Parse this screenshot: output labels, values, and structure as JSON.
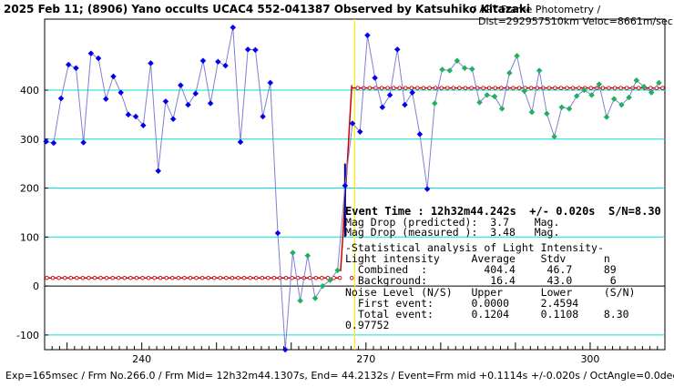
{
  "chart_data": {
    "type": "line",
    "title": "2025 Feb 11; (8906) Yano occults UCAC4 552-041387 Observed by Katsuhiko Kitazaki",
    "subtitle_line1": "/ APT-Frame Photometry /",
    "subtitle_line2": "Dist=292957510km Veloc=8661m/sec",
    "xlabel": "",
    "ylabel": "",
    "xlim": [
      227,
      310
    ],
    "ylim": [
      -130,
      545
    ],
    "x_ticks": [
      240,
      270,
      300
    ],
    "y_ticks": [
      -100,
      0,
      100,
      200,
      300,
      400
    ],
    "grid": "horizontal",
    "event_time_x": 268.5,
    "series": [
      {
        "name": "Light intensity",
        "line_color": "#8080d0",
        "points": [
          {
            "x": 227.2,
            "y": 295,
            "c": "blue"
          },
          {
            "x": 228.2,
            "y": 292,
            "c": "blue"
          },
          {
            "x": 229.2,
            "y": 383,
            "c": "blue"
          },
          {
            "x": 230.2,
            "y": 452,
            "c": "blue"
          },
          {
            "x": 231.2,
            "y": 445,
            "c": "blue"
          },
          {
            "x": 232.2,
            "y": 293,
            "c": "blue"
          },
          {
            "x": 233.2,
            "y": 475,
            "c": "blue"
          },
          {
            "x": 234.2,
            "y": 465,
            "c": "blue"
          },
          {
            "x": 235.2,
            "y": 382,
            "c": "blue"
          },
          {
            "x": 236.2,
            "y": 428,
            "c": "blue"
          },
          {
            "x": 237.2,
            "y": 395,
            "c": "blue"
          },
          {
            "x": 238.2,
            "y": 350,
            "c": "blue"
          },
          {
            "x": 239.2,
            "y": 346,
            "c": "blue"
          },
          {
            "x": 240.2,
            "y": 328,
            "c": "blue"
          },
          {
            "x": 241.2,
            "y": 455,
            "c": "blue"
          },
          {
            "x": 242.2,
            "y": 235,
            "c": "blue"
          },
          {
            "x": 243.2,
            "y": 377,
            "c": "blue"
          },
          {
            "x": 244.2,
            "y": 341,
            "c": "blue"
          },
          {
            "x": 245.2,
            "y": 410,
            "c": "blue"
          },
          {
            "x": 246.2,
            "y": 370,
            "c": "blue"
          },
          {
            "x": 247.2,
            "y": 393,
            "c": "blue"
          },
          {
            "x": 248.2,
            "y": 460,
            "c": "blue"
          },
          {
            "x": 249.2,
            "y": 373,
            "c": "blue"
          },
          {
            "x": 250.2,
            "y": 458,
            "c": "blue"
          },
          {
            "x": 251.2,
            "y": 450,
            "c": "blue"
          },
          {
            "x": 252.2,
            "y": 528,
            "c": "blue"
          },
          {
            "x": 253.2,
            "y": 294,
            "c": "blue"
          },
          {
            "x": 254.2,
            "y": 483,
            "c": "blue"
          },
          {
            "x": 255.2,
            "y": 482,
            "c": "blue"
          },
          {
            "x": 256.2,
            "y": 346,
            "c": "blue"
          },
          {
            "x": 257.2,
            "y": 415,
            "c": "blue"
          },
          {
            "x": 258.2,
            "y": 108,
            "c": "blue"
          },
          {
            "x": 259.2,
            "y": -130,
            "c": "blue"
          },
          {
            "x": 260.2,
            "y": 68,
            "c": "green"
          },
          {
            "x": 261.2,
            "y": -30,
            "c": "green"
          },
          {
            "x": 262.2,
            "y": 62,
            "c": "green"
          },
          {
            "x": 263.2,
            "y": -25,
            "c": "green"
          },
          {
            "x": 264.2,
            "y": 0,
            "c": "green"
          },
          {
            "x": 265.2,
            "y": 12,
            "c": "green"
          },
          {
            "x": 266.2,
            "y": 32,
            "c": "green"
          },
          {
            "x": 267.2,
            "y": 205,
            "c": "blue"
          },
          {
            "x": 268.2,
            "y": 332,
            "c": "blue"
          },
          {
            "x": 269.2,
            "y": 315,
            "c": "blue"
          },
          {
            "x": 270.2,
            "y": 512,
            "c": "blue"
          },
          {
            "x": 271.2,
            "y": 425,
            "c": "blue"
          },
          {
            "x": 272.2,
            "y": 365,
            "c": "blue"
          },
          {
            "x": 273.2,
            "y": 390,
            "c": "blue"
          },
          {
            "x": 274.2,
            "y": 483,
            "c": "blue"
          },
          {
            "x": 275.2,
            "y": 370,
            "c": "blue"
          },
          {
            "x": 276.2,
            "y": 395,
            "c": "blue"
          },
          {
            "x": 277.2,
            "y": 310,
            "c": "blue"
          },
          {
            "x": 278.2,
            "y": 198,
            "c": "blue"
          },
          {
            "x": 279.2,
            "y": 373,
            "c": "green"
          },
          {
            "x": 280.2,
            "y": 442,
            "c": "green"
          },
          {
            "x": 281.2,
            "y": 440,
            "c": "green"
          },
          {
            "x": 282.2,
            "y": 460,
            "c": "green"
          },
          {
            "x": 283.2,
            "y": 445,
            "c": "green"
          },
          {
            "x": 284.2,
            "y": 443,
            "c": "green"
          },
          {
            "x": 285.2,
            "y": 375,
            "c": "green"
          },
          {
            "x": 286.2,
            "y": 390,
            "c": "green"
          },
          {
            "x": 287.2,
            "y": 387,
            "c": "green"
          },
          {
            "x": 288.2,
            "y": 362,
            "c": "green"
          },
          {
            "x": 289.2,
            "y": 435,
            "c": "green"
          },
          {
            "x": 290.2,
            "y": 470,
            "c": "green"
          },
          {
            "x": 291.2,
            "y": 398,
            "c": "green"
          },
          {
            "x": 292.2,
            "y": 355,
            "c": "green"
          },
          {
            "x": 293.2,
            "y": 440,
            "c": "green"
          },
          {
            "x": 294.2,
            "y": 352,
            "c": "green"
          },
          {
            "x": 295.2,
            "y": 305,
            "c": "green"
          },
          {
            "x": 296.2,
            "y": 365,
            "c": "green"
          },
          {
            "x": 297.2,
            "y": 362,
            "c": "green"
          },
          {
            "x": 298.2,
            "y": 388,
            "c": "green"
          },
          {
            "x": 299.2,
            "y": 400,
            "c": "green"
          },
          {
            "x": 300.2,
            "y": 390,
            "c": "green"
          },
          {
            "x": 301.2,
            "y": 412,
            "c": "green"
          },
          {
            "x": 302.2,
            "y": 345,
            "c": "green"
          },
          {
            "x": 303.2,
            "y": 382,
            "c": "green"
          },
          {
            "x": 304.2,
            "y": 370,
            "c": "green"
          },
          {
            "x": 305.2,
            "y": 385,
            "c": "green"
          },
          {
            "x": 306.2,
            "y": 420,
            "c": "green"
          },
          {
            "x": 307.2,
            "y": 407,
            "c": "green"
          },
          {
            "x": 308.2,
            "y": 395,
            "c": "green"
          },
          {
            "x": 309.2,
            "y": 415,
            "c": "green"
          }
        ]
      },
      {
        "name": "Fitted model",
        "line_color": "#cc0000",
        "low_level": 16.4,
        "high_level": 404.4,
        "x_start": 227,
        "x_end": 310,
        "event_x": 268.5,
        "step_x": [
          266.6,
          266.9,
          267.2,
          267.5,
          267.8,
          268.1
        ],
        "step_y": [
          30,
          100,
          180,
          250,
          330,
          410
        ]
      }
    ],
    "colors": {
      "blue": "#0000ee",
      "green": "#20b060",
      "grid": "#00e0e0",
      "event_line": "#ffee00",
      "data_line": "#8080d0",
      "model": "#cc0000",
      "step": "#000080"
    }
  },
  "annotations": {
    "event_time": "Event Time : 12h32m44.242s  +/- 0.020s  S/N=8.30",
    "mag_pred": "Mag Drop (predicted):  3.7    Mag.",
    "mag_meas": "Mag Drop (measured ):  3.48   Mag.",
    "stat_head": "-Statistical analysis of Light Intensity-",
    "stat_cols": "Light intensity     Average    Stdv      n",
    "stat_comb": "  Combined  :         404.4     46.7     89",
    "stat_back": "  Background:          16.4     43.0      6",
    "noise_head": "Noise Level (N/S)   Upper      Lower     (S/N)",
    "noise_first": "  First event:      0.0000     2.4594",
    "noise_total": "  Total event:      0.1204     0.1108    8.30",
    "noise_extra": "0.97752"
  },
  "footer": "Exp=165msec / Frm No.266.0 / Frm Mid= 12h32m44.1307s, End= 44.2132s / Event=Frm mid +0.1114s +/-0.020s / OctAngle=0.0deg"
}
